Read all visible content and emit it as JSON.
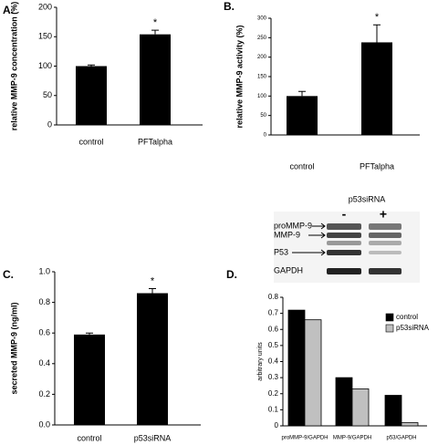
{
  "chart_data": [
    {
      "type": "bar",
      "panel": "A.",
      "ylabel": "relative MMP-9 concentration (%)",
      "categories": [
        "control",
        "PFTalpha"
      ],
      "values": [
        100,
        154
      ],
      "errors": [
        2,
        7
      ],
      "annotation": "*",
      "color": "#000000",
      "ylim": [
        0,
        200
      ],
      "yticks": [
        0,
        50,
        100,
        150,
        200
      ]
    },
    {
      "type": "bar",
      "panel": "B.",
      "ylabel": "relative MMP-9 activity (%)",
      "categories": [
        "control",
        "PFTalpha"
      ],
      "values": [
        100,
        238
      ],
      "errors": [
        12,
        45
      ],
      "annotation": "*",
      "color": "#000000",
      "ylim": [
        0,
        300
      ],
      "yticks": [
        0,
        50,
        100,
        150,
        200,
        250,
        300
      ]
    },
    {
      "type": "bar",
      "panel": "C.",
      "ylabel": "secreted MMP-9 (ng/ml)",
      "categories": [
        "control",
        "p53siRNA"
      ],
      "values": [
        0.59,
        0.86
      ],
      "errors": [
        0.01,
        0.03
      ],
      "annotation": "*",
      "color": "#000000",
      "ylim": [
        0,
        1.0
      ],
      "yticks": [
        {
          "value": 0,
          "label": "0.0"
        },
        0.2,
        0.4,
        0.6,
        0.8,
        {
          "value": 1.0,
          "label": "1.0"
        }
      ]
    },
    {
      "type": "grouped_bar",
      "panel": "D.",
      "ylabel": "arbitrary units",
      "categories": [
        "proMMP-9/GAPDH",
        "MMP-9/GAPDH",
        "p53/GAPDH"
      ],
      "series": [
        {
          "name": "control",
          "color": "#000000",
          "values": [
            0.72,
            0.3,
            0.19
          ]
        },
        {
          "name": "p53siRNA",
          "color": "#c0c0c0",
          "values": [
            0.66,
            0.23,
            0.02
          ]
        }
      ],
      "legend": "right",
      "ylim": [
        0,
        0.8
      ],
      "yticks": [
        0,
        0.1,
        0.2,
        0.3,
        0.4,
        0.5,
        0.6,
        0.7,
        0.8
      ]
    }
  ],
  "blot": {
    "title": "p53siRNA",
    "lanes": [
      "-",
      "+"
    ],
    "bands": [
      "proMMP-9",
      "MMP-9",
      "P53",
      "GAPDH"
    ]
  }
}
